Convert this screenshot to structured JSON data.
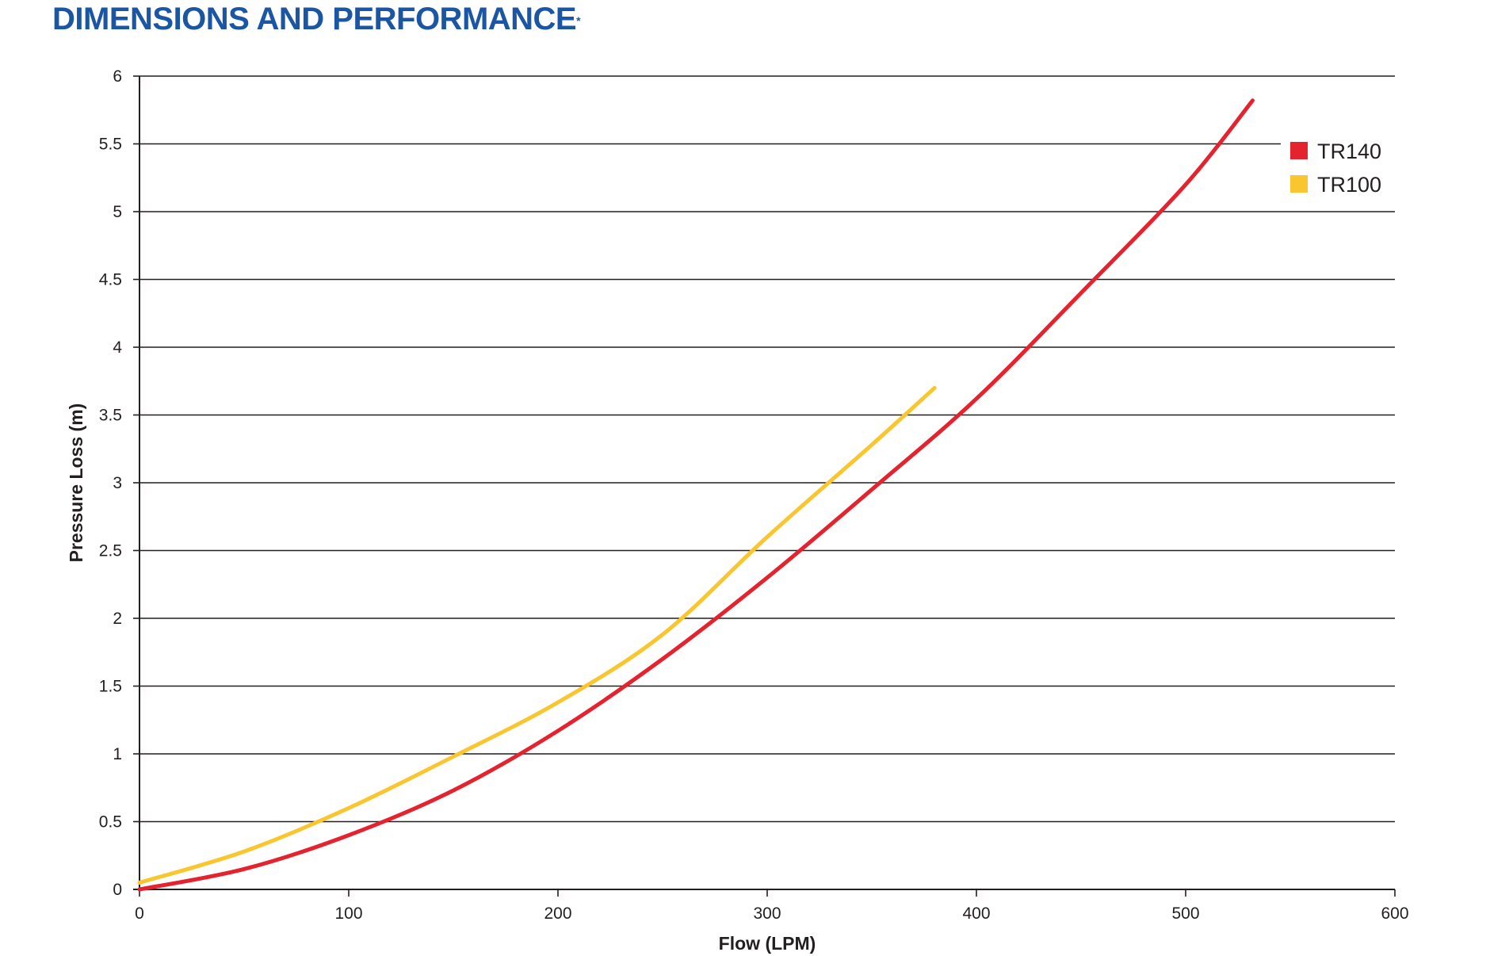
{
  "header": {
    "title": "DIMENSIONS AND PERFORMANCE",
    "title_mark": "*"
  },
  "colors": {
    "heading": "#1a56a4",
    "TR140": "#e4232f",
    "TR100": "#f9c62f",
    "grid": "#231f20"
  },
  "chart_data": {
    "type": "line",
    "title": "",
    "xlabel": "Flow (LPM)",
    "ylabel": "Pressure Loss (m)",
    "xlim": [
      0,
      600
    ],
    "ylim": [
      0,
      6
    ],
    "x_ticks": [
      0,
      100,
      200,
      300,
      400,
      500,
      600
    ],
    "y_ticks": [
      0,
      0.5,
      1,
      1.5,
      2,
      2.5,
      3,
      3.5,
      4,
      4.5,
      5,
      5.5,
      6
    ],
    "x_tick_labels": [
      "0",
      "100",
      "200",
      "300",
      "400",
      "500",
      "600"
    ],
    "y_tick_labels": [
      "0",
      "0.5",
      "1",
      "1.5",
      "2",
      "2.5",
      "3",
      "3.5",
      "4",
      "4.5",
      "5",
      "5.5",
      "6"
    ],
    "grid": "horizontal",
    "legend_position": "top-right",
    "series": [
      {
        "name": "TR140",
        "color": "#e4232f",
        "x": [
          0,
          50,
          100,
          150,
          200,
          250,
          300,
          350,
          400,
          450,
          500,
          532
        ],
        "y": [
          0,
          0.15,
          0.4,
          0.73,
          1.17,
          1.7,
          2.3,
          2.95,
          3.62,
          4.4,
          5.2,
          5.82
        ]
      },
      {
        "name": "TR100",
        "color": "#f9c62f",
        "x": [
          0,
          50,
          100,
          150,
          200,
          250,
          300,
          350,
          380
        ],
        "y": [
          0.05,
          0.28,
          0.6,
          0.98,
          1.38,
          1.88,
          2.6,
          3.28,
          3.7
        ]
      }
    ]
  }
}
